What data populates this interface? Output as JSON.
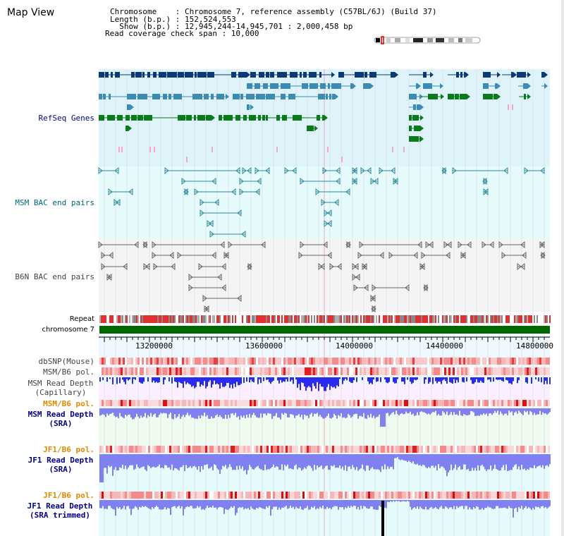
{
  "header": {
    "title": "Map View",
    "chromosome_line": "Chromosome    : Chromosome 7, reference assembly (C57BL/6J) (Build 37)",
    "length_line": "Length (b.p.) : 152,524,553",
    "show_line": "  Show (b.p.) : 12,945,244-14,945,701 : 2,000,458 bp",
    "coverage_line": "Read coverage check span : 10,000"
  },
  "tracks": {
    "refseq": "RefSeq Genes",
    "msm_bac": "MSM BAC end pairs",
    "b6n_bac": "B6N BAC end pairs",
    "repeat": "Repeat",
    "chromosome": "chromosome 7",
    "dbsnp": "dbSNP(Mouse)",
    "msm_b6_pol": "MSM/B6 pol.",
    "msm_depth_cap_1": "MSM Read Depth",
    "msm_depth_cap_2": "(Capillary)",
    "msm_b6_pol2": "MSM/B6 pol.",
    "msm_depth_sra_1": "MSM Read Depth",
    "msm_depth_sra_2": "(SRA)",
    "jf1_b6_pol": "JF1/B6 pol.",
    "jf1_depth_sra_1": "JF1 Read Depth",
    "jf1_depth_sra_2": "(SRA)",
    "jf1_b6_pol2": "JF1/B6 pol.",
    "jf1_depth_trim_1": "JF1 Read Depth",
    "jf1_depth_trim_2": "(SRA trimmed)"
  },
  "axis": {
    "ticks": [
      "13200000",
      "13600000",
      "14000000",
      "14400000",
      "14800000"
    ]
  },
  "colors": {
    "refseq_bg": "#dff3fb",
    "msm_bg": "#e6fbfb",
    "b6n_bg": "#f4f4f4",
    "gene_dark": "#0b3a77",
    "gene_mid": "#3c8bb3",
    "gene_green": "#0a7a1a",
    "pink": "#f6a6c6",
    "msm_feature": "#2f8a9a",
    "b6n_feature": "#666666",
    "repeat": "#e03030",
    "chromosome": "#006600",
    "depth_blue": "#2b2bf0",
    "depth_light": "#8080f0"
  }
}
